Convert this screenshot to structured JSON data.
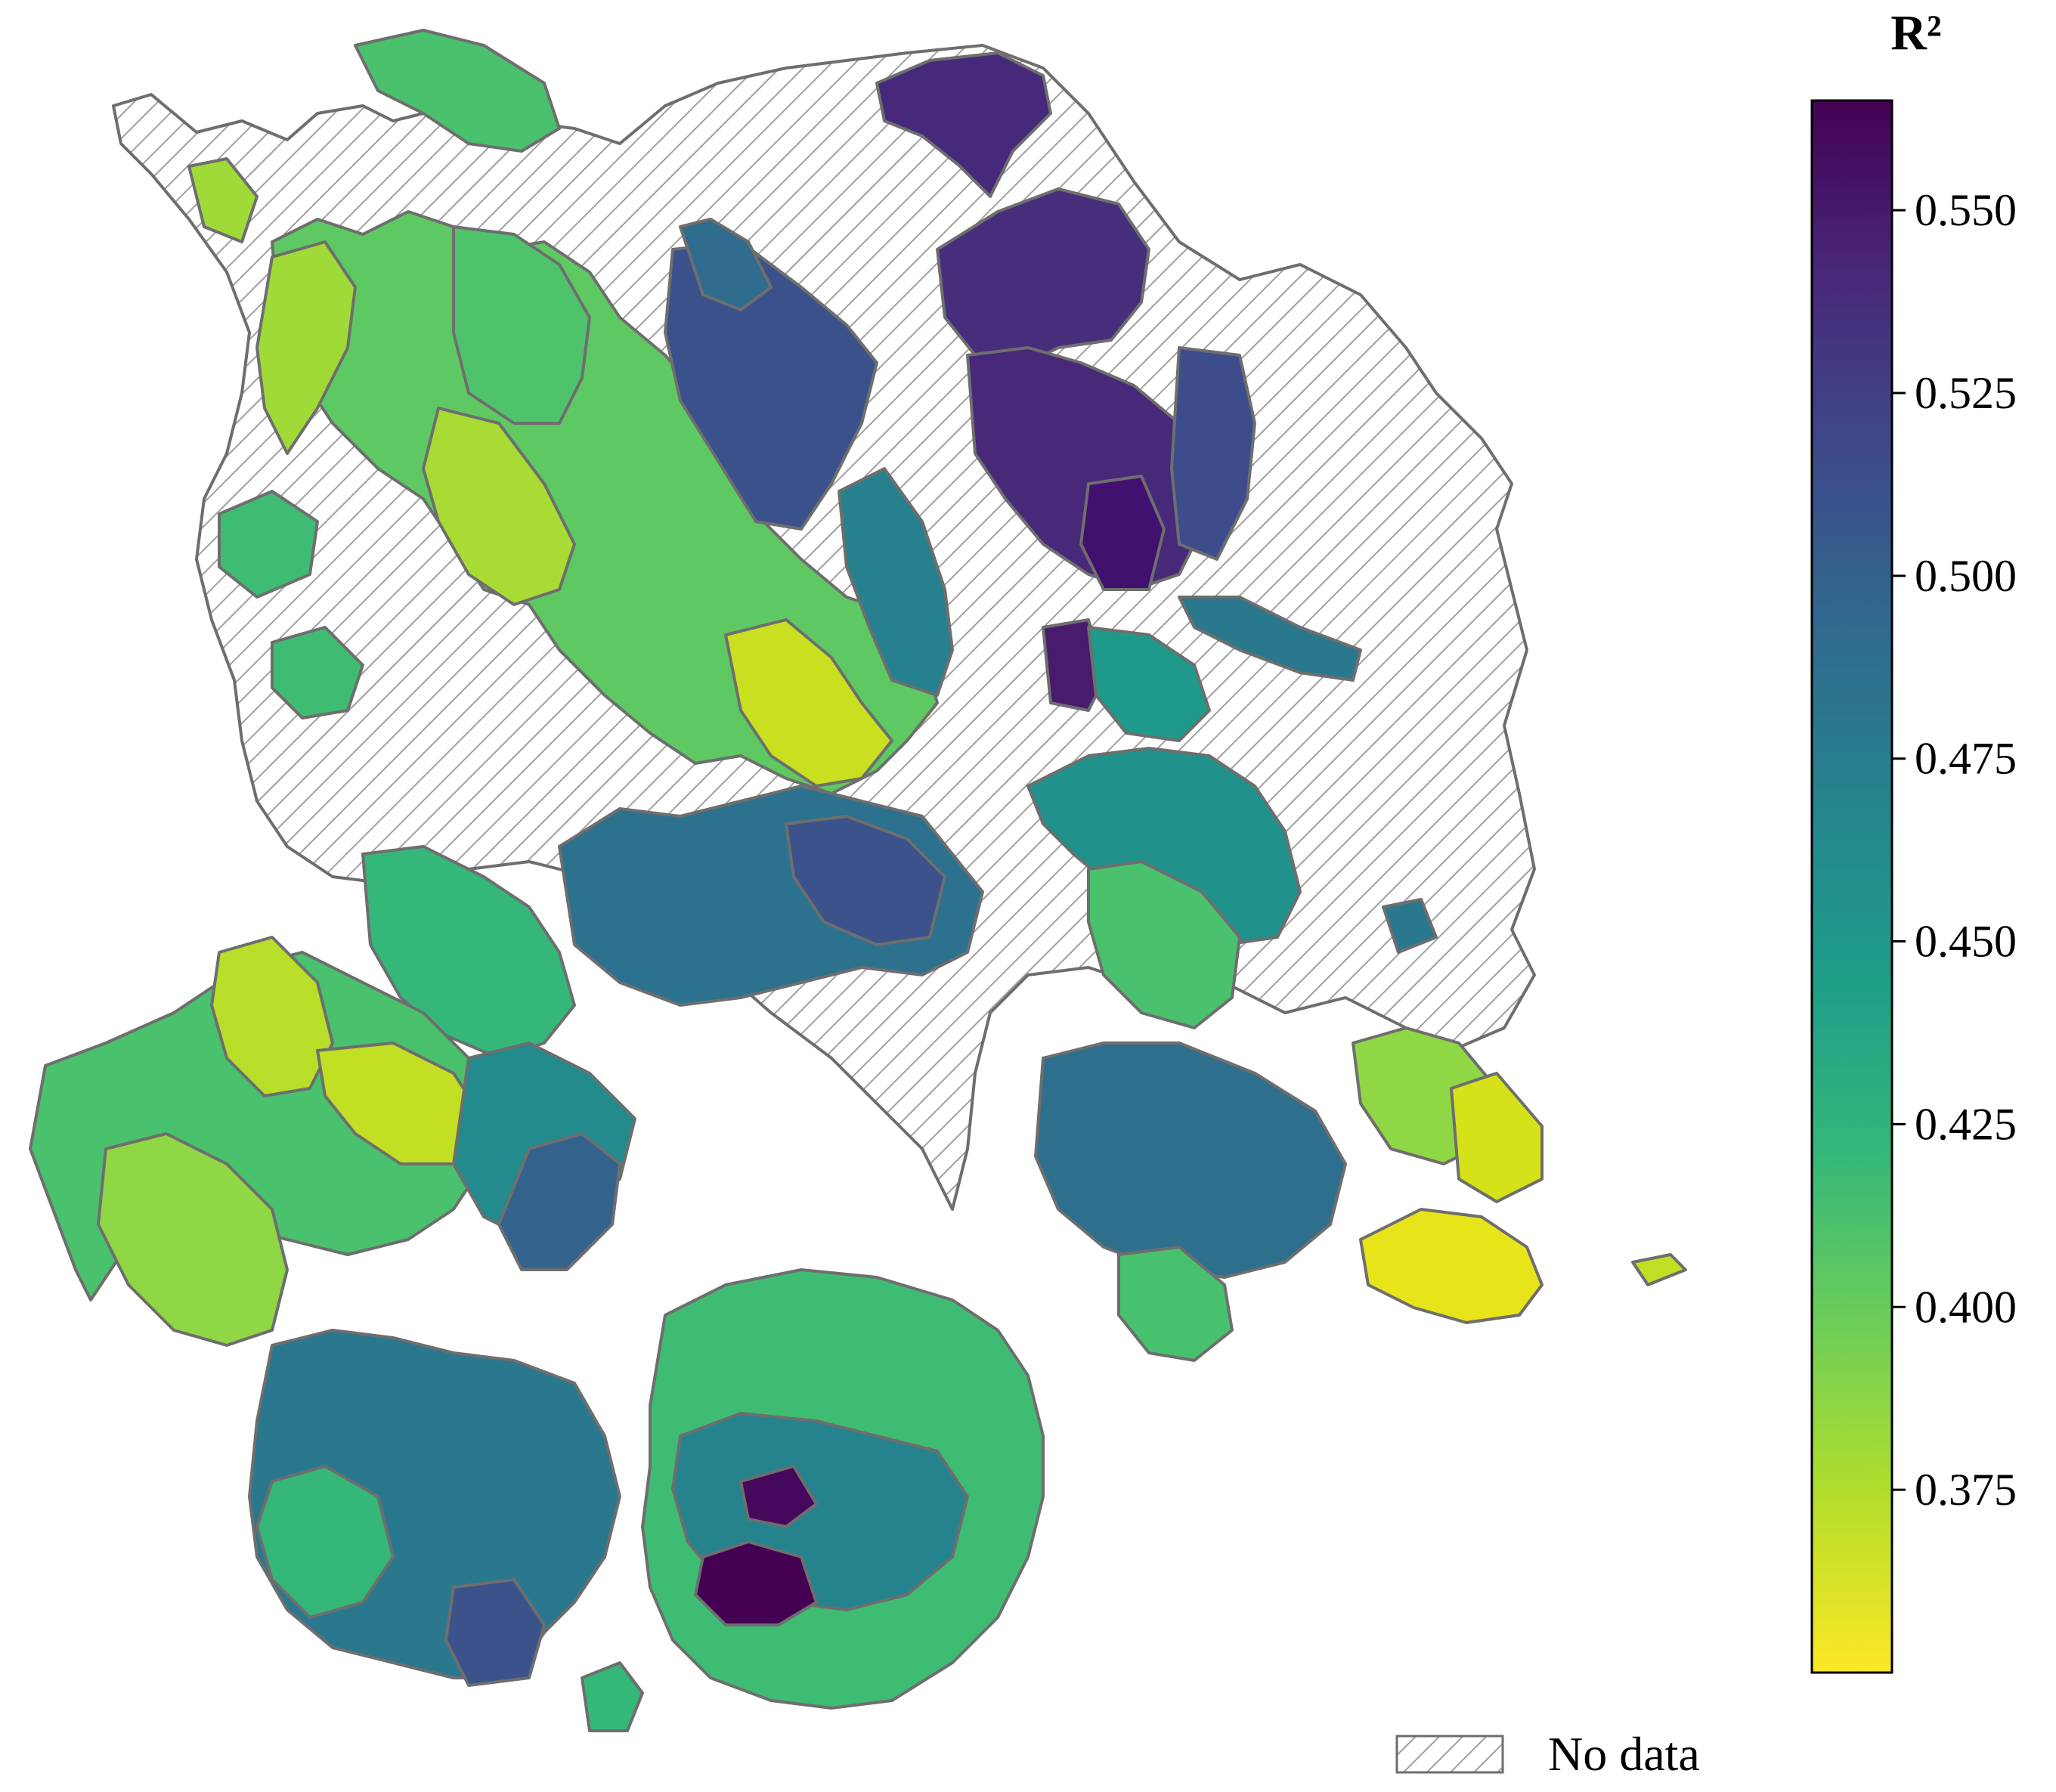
{
  "colorbar": {
    "title": "R²",
    "colormap": "viridis (reversed)",
    "range": [
      0.35,
      0.565
    ],
    "ticks": [
      {
        "value": 0.55,
        "label": "0.550"
      },
      {
        "value": 0.525,
        "label": "0.525"
      },
      {
        "value": 0.5,
        "label": "0.500"
      },
      {
        "value": 0.475,
        "label": "0.475"
      },
      {
        "value": 0.45,
        "label": "0.450"
      },
      {
        "value": 0.425,
        "label": "0.425"
      },
      {
        "value": 0.4,
        "label": "0.400"
      },
      {
        "value": 0.375,
        "label": "0.375"
      }
    ],
    "stops": [
      "#fde725",
      "#b5de2b",
      "#6ece58",
      "#35b779",
      "#1f9e89",
      "#26828e",
      "#31688e",
      "#3e4989",
      "#482878",
      "#440154"
    ]
  },
  "legend": {
    "nodata_label": "No data",
    "nodata_pattern": "diagonal-hatch"
  },
  "colors": {
    "boundary": "#7a7a7a",
    "nodata_fill": "#ffffff",
    "hatch": "#9a9a9a"
  }
}
